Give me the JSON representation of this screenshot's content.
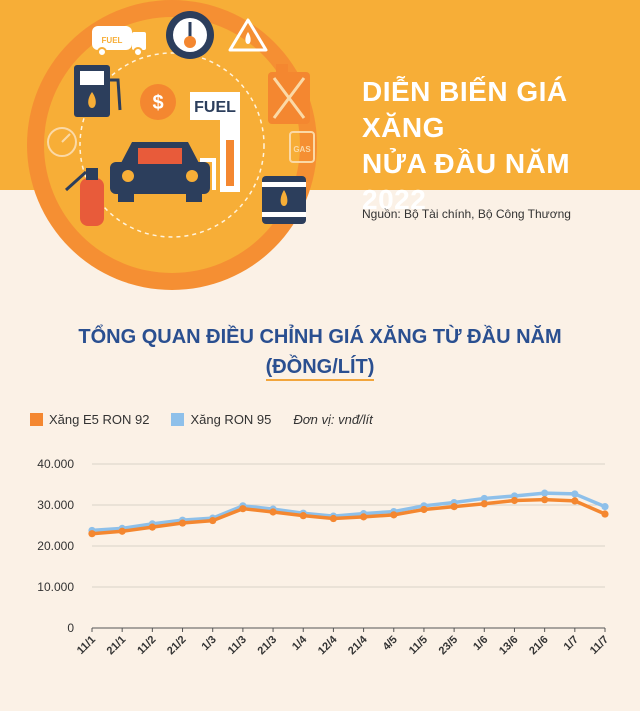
{
  "header": {
    "title_line1": "DIỄN BIẾN GIÁ XĂNG",
    "title_line2": "NỬA ĐẦU NĂM 2022",
    "source": "Nguồn: Bộ Tài chính, Bộ Công Thương",
    "illustration_labels": {
      "fuel_sign": "FUEL",
      "truck": "FUEL",
      "gas_can": "GAS"
    }
  },
  "chart_title": {
    "line1": "TỔNG QUAN ĐIỀU CHỈNH GIÁ XĂNG TỪ ĐẦU NĂM",
    "line2": "(ĐỒNG/LÍT)"
  },
  "legend": {
    "items": [
      {
        "label": "Xăng E5 RON 92",
        "color": "#f48730"
      },
      {
        "label": "Xăng RON 95",
        "color": "#8ec0ea"
      }
    ],
    "unit_note": "Đơn vị: vnđ/lít"
  },
  "chart_data": {
    "type": "line",
    "categories": [
      "11/1",
      "21/1",
      "11/2",
      "21/2",
      "1/3",
      "11/3",
      "21/3",
      "1/4",
      "12/4",
      "21/4",
      "4/5",
      "11/5",
      "23/5",
      "1/6",
      "13/6",
      "21/6",
      "1/7",
      "11/7"
    ],
    "series": [
      {
        "name": "Xăng E5 RON 92",
        "color": "#f48730",
        "values": [
          23000,
          23600,
          24600,
          25600,
          26200,
          29100,
          28300,
          27400,
          26700,
          27100,
          27600,
          28900,
          29600,
          30300,
          31100,
          31300,
          31000,
          27800
        ]
      },
      {
        "name": "Xăng RON 95",
        "color": "#8ec0ea",
        "values": [
          23800,
          24300,
          25400,
          26300,
          26800,
          29800,
          29000,
          28000,
          27300,
          27900,
          28400,
          29800,
          30600,
          31600,
          32200,
          32900,
          32700,
          29600
        ]
      }
    ],
    "yticks": [
      "0",
      "10.000",
      "20.000",
      "30.000",
      "40.000"
    ],
    "ylim": [
      0,
      40000
    ],
    "grid": "horizontal",
    "legend_placement": "top-left"
  },
  "colors": {
    "top_band": "#f7ae37",
    "circle_outer": "#f58f33",
    "circle_inner": "#f7ae37",
    "title_blue": "#2a4f90"
  }
}
